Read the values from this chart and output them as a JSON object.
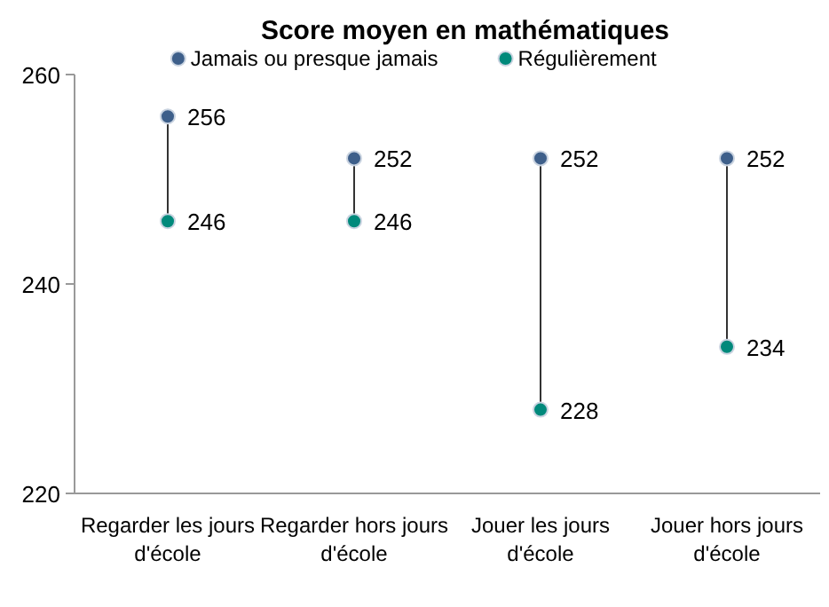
{
  "chart_data": {
    "type": "scatter",
    "title": "Score moyen en mathématiques",
    "categories": [
      "Regarder les jours d'école",
      "Regarder hors jours d'école",
      "Jouer les jours d'école",
      "Jouer hors jours d'école"
    ],
    "series": [
      {
        "name": "Jamais ou presque jamais",
        "color": "#3e5f8a",
        "values": [
          256,
          252,
          252,
          252
        ]
      },
      {
        "name": "Régulièrement",
        "color": "#00897b",
        "values": [
          246,
          246,
          228,
          234
        ]
      }
    ],
    "ylim": [
      220,
      260
    ],
    "yticks": [
      220,
      240,
      260
    ],
    "data_labels": true,
    "legend": "top",
    "marker": "circle",
    "grid": false
  }
}
